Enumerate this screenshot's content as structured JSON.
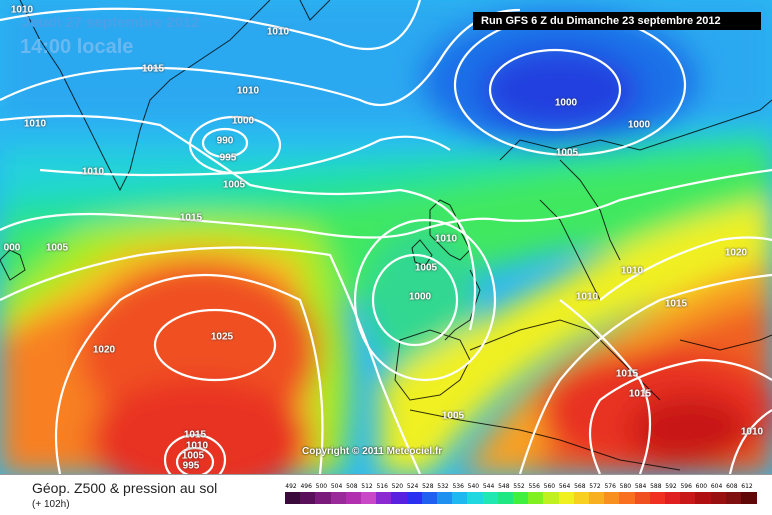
{
  "header": {
    "date": "Jeudi 27 septembre 2012",
    "local_time": "14:00 locale",
    "run": "Run GFS 6 Z du Dimanche 23 septembre 2012"
  },
  "copyright": "Copyright © 2011 Meteociel.fr",
  "isobars": [
    {
      "text": "1010"
    },
    {
      "text": "1010"
    },
    {
      "text": "1015"
    },
    {
      "text": "1010"
    },
    {
      "text": "1010"
    },
    {
      "text": "1000"
    },
    {
      "text": "990"
    },
    {
      "text": "995"
    },
    {
      "text": "1005"
    },
    {
      "text": "1010"
    },
    {
      "text": "1015"
    },
    {
      "text": "000"
    },
    {
      "text": "1005"
    },
    {
      "text": "1000"
    },
    {
      "text": "1000"
    },
    {
      "text": "1005"
    },
    {
      "text": "1010"
    },
    {
      "text": "1005"
    },
    {
      "text": "1000"
    },
    {
      "text": "1010"
    },
    {
      "text": "1010"
    },
    {
      "text": "1015"
    },
    {
      "text": "1020"
    },
    {
      "text": "1020"
    },
    {
      "text": "1025"
    },
    {
      "text": "1015"
    },
    {
      "text": "1010"
    },
    {
      "text": "1005"
    },
    {
      "text": "995"
    },
    {
      "text": "1005"
    },
    {
      "text": "1015"
    },
    {
      "text": "1015"
    },
    {
      "text": "1010"
    }
  ],
  "legend": {
    "title": "Géop. Z500 & pression au sol",
    "subtitle": "(+ 102h)",
    "scale": [
      "492",
      "496",
      "500",
      "504",
      "508",
      "512",
      "516",
      "520",
      "524",
      "528",
      "532",
      "536",
      "540",
      "544",
      "548",
      "552",
      "556",
      "560",
      "564",
      "568",
      "572",
      "576",
      "580",
      "584",
      "588",
      "592",
      "596",
      "600",
      "604",
      "608",
      "612"
    ],
    "colors": [
      "#3a0a3a",
      "#5a0f5a",
      "#7a1a7a",
      "#9a2a9a",
      "#b030b0",
      "#c848c8",
      "#8a2ad0",
      "#5a20e0",
      "#2a30f0",
      "#2060f0",
      "#2090f0",
      "#20b8f0",
      "#20d8e0",
      "#20e8b0",
      "#20e880",
      "#40f040",
      "#80f020",
      "#c0f020",
      "#f0f020",
      "#f8d020",
      "#f8b020",
      "#f89020",
      "#f87020",
      "#f05020",
      "#f03020",
      "#e02020",
      "#c81818",
      "#b01010",
      "#981010",
      "#801010",
      "#600808"
    ]
  }
}
